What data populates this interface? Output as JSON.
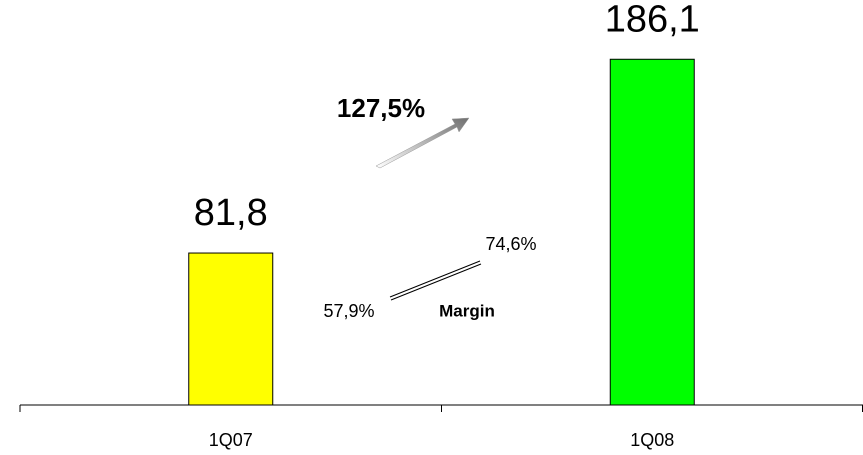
{
  "chart_data": {
    "type": "bar",
    "categories": [
      "1Q07",
      "1Q08"
    ],
    "values": [
      81.8,
      186.1
    ],
    "value_labels": [
      "81,8",
      "186,1"
    ],
    "colors": [
      "#ffff00",
      "#00ff00"
    ],
    "ylim": [
      0,
      218
    ],
    "annotations": {
      "growth": "127,5%",
      "margin_start": "57,9%",
      "margin_end": "74,6%",
      "margin_label": "Margin"
    }
  }
}
